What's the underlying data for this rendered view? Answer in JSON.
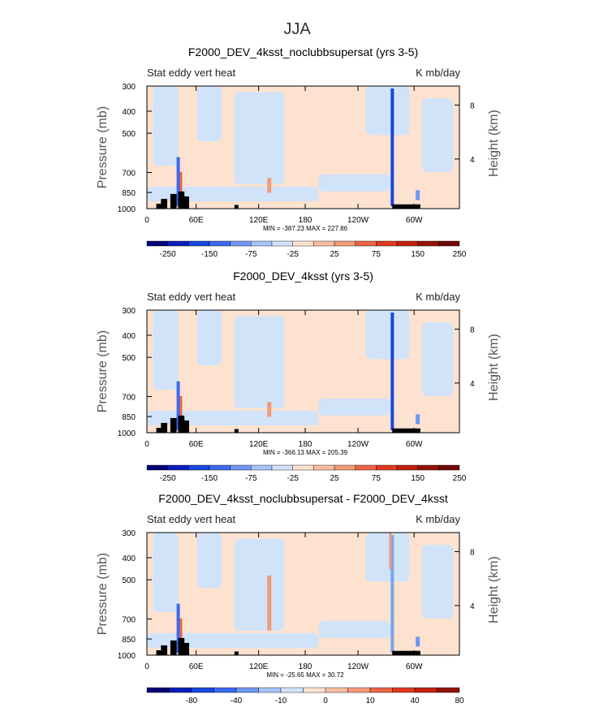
{
  "figure": {
    "suptitle": "JJA"
  },
  "colors": {
    "positive": "#fde2cf",
    "negative": "#d0e3f8",
    "terrain": "#000000",
    "colorbar": [
      "#010075",
      "#0a1fbb",
      "#1a46e0",
      "#3a6af0",
      "#6f98f2",
      "#a5c4f7",
      "#d0e3f8",
      "#fde2cf",
      "#f9bca0",
      "#f39a79",
      "#ec6548",
      "#e0391e",
      "#c1210f",
      "#941209",
      "#720707"
    ]
  },
  "chart_data": [
    {
      "type": "heatmap",
      "title": "F2000_DEV_4ksst_noclubbsupersat (yrs 3-5)",
      "left_label": "Stat eddy vert heat",
      "right_label": "K mb/day",
      "ylabel": "Pressure (mb)",
      "ylabel_right": "Height (km)",
      "x_ticks": [
        "0",
        "60E",
        "120E",
        "180",
        "120W",
        "60W"
      ],
      "y_ticks": [
        "300",
        "400",
        "500",
        "700",
        "850",
        "1000"
      ],
      "height_ticks": [
        "8",
        "4"
      ],
      "stats": "MIN = -387.23   MAX = 227.86",
      "colorbar_labels": [
        "-250",
        "-150",
        "-75",
        "-25",
        "25",
        "75",
        "150",
        "250"
      ],
      "min": -387.23,
      "max": 227.86
    },
    {
      "type": "heatmap",
      "title": "F2000_DEV_4ksst (yrs 3-5)",
      "left_label": "Stat eddy vert heat",
      "right_label": "K mb/day",
      "ylabel": "Pressure (mb)",
      "ylabel_right": "Height (km)",
      "x_ticks": [
        "0",
        "60E",
        "120E",
        "180",
        "120W",
        "60W"
      ],
      "y_ticks": [
        "300",
        "400",
        "500",
        "700",
        "850",
        "1000"
      ],
      "height_ticks": [
        "8",
        "4"
      ],
      "stats": "MIN = -366.13   MAX = 205.39",
      "colorbar_labels": [
        "-250",
        "-150",
        "-75",
        "-25",
        "25",
        "75",
        "150",
        "250"
      ],
      "min": -366.13,
      "max": 205.39
    },
    {
      "type": "heatmap",
      "title": "F2000_DEV_4ksst_noclubbsupersat - F2000_DEV_4ksst",
      "left_label": "Stat eddy vert heat",
      "right_label": "K mb/day",
      "ylabel": "Pressure (mb)",
      "ylabel_right": "Height (km)",
      "x_ticks": [
        "0",
        "60E",
        "120E",
        "180",
        "120W",
        "60W"
      ],
      "y_ticks": [
        "300",
        "400",
        "500",
        "700",
        "850",
        "1000"
      ],
      "height_ticks": [
        "8",
        "4"
      ],
      "stats": "MIN = -25.65   MAX = 30.72",
      "colorbar_labels": [
        "-80",
        "-40",
        "-10",
        "0",
        "10",
        "40",
        "80"
      ],
      "min": -25.65,
      "max": 30.72
    }
  ]
}
